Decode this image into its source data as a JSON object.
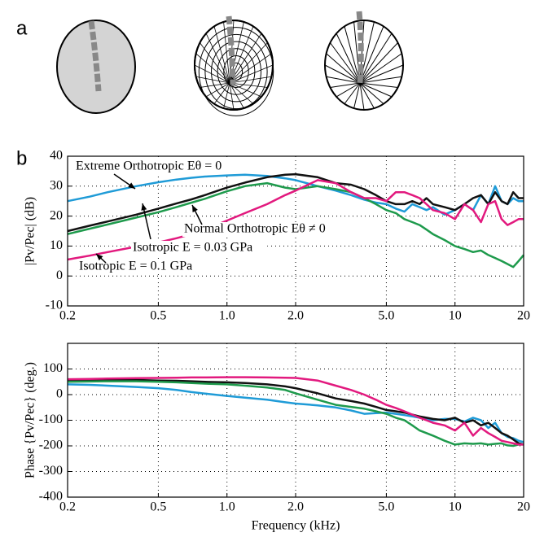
{
  "panels": [
    "a",
    "b"
  ],
  "chart_data": [
    {
      "type": "line",
      "xscale": "log",
      "grid": true,
      "y_label": "|Pv/Pec| (dB)",
      "x": [
        0.2,
        0.25,
        0.3,
        0.4,
        0.5,
        0.6,
        0.7,
        0.8,
        1.0,
        1.2,
        1.5,
        1.8,
        2.0,
        2.5,
        3.0,
        3.5,
        4.0,
        4.5,
        5.0,
        5.5,
        6.0,
        6.5,
        7.0,
        7.5,
        8.0,
        9.0,
        10,
        11,
        12,
        13,
        14,
        15,
        16,
        17,
        18,
        19,
        20
      ],
      "xlim": [
        0.2,
        20
      ],
      "xticks": [
        0.2,
        0.5,
        {
          "value": 1,
          "label": "1.0"
        },
        {
          "value": 2,
          "label": "2.0"
        },
        {
          "value": 5,
          "label": "5.0"
        },
        10,
        20
      ],
      "ylim": [
        -10,
        40
      ],
      "yticks": [
        -10,
        0,
        10,
        20,
        30,
        40
      ],
      "annotations": [
        {
          "text": "Extreme Orthotropic Eθ = 0"
        },
        {
          "text": "Normal Orthotropic Eθ ≠ 0"
        },
        {
          "text": "Isotropic E = 0.03 GPa"
        },
        {
          "text": "Isotropic E = 0.1 GPa"
        }
      ],
      "series": [
        {
          "color": "#1f9bd7",
          "values": [
            25,
            26.5,
            28,
            30,
            31.3,
            32.2,
            32.8,
            33.2,
            33.6,
            33.8,
            33.4,
            32.6,
            32,
            30,
            28.5,
            27,
            25.5,
            24.5,
            24,
            22.5,
            21.5,
            24,
            23,
            22,
            23,
            20.5,
            22,
            24,
            22,
            27,
            24,
            30,
            25,
            24,
            26,
            25,
            25
          ]
        },
        {
          "color": "#111111",
          "values": [
            15,
            16.8,
            18.2,
            20.5,
            22.5,
            24.2,
            25.6,
            27,
            29.5,
            31.2,
            33,
            33.8,
            34,
            33,
            31,
            30.5,
            29,
            27,
            25,
            24,
            24,
            25,
            24,
            26,
            24,
            23,
            22,
            24,
            26,
            27,
            24,
            28,
            25,
            24,
            28,
            26,
            26
          ]
        },
        {
          "color": "#1e9a4c",
          "values": [
            14,
            15.8,
            17.2,
            19.5,
            21.3,
            23,
            24.5,
            25.8,
            28.3,
            30,
            31,
            29.5,
            29,
            30,
            29,
            28,
            26,
            24,
            22,
            21,
            19,
            18,
            17,
            15.5,
            14,
            12,
            10,
            9,
            8,
            8.5,
            7,
            6,
            5,
            4,
            3,
            5,
            7
          ]
        },
        {
          "color": "#e2197e",
          "values": [
            5.5,
            6.8,
            8,
            9.8,
            11.2,
            12.6,
            14,
            15.5,
            18.5,
            21,
            24,
            27,
            28.5,
            32,
            31,
            28,
            26,
            26,
            25,
            28,
            28,
            27,
            26,
            24,
            22,
            21,
            19,
            24,
            22,
            18,
            24,
            25,
            19,
            17,
            18,
            19,
            19
          ]
        }
      ]
    },
    {
      "type": "line",
      "xscale": "log",
      "grid": true,
      "y_label": "Phase {Pv/Pec} (deg.)",
      "x_label": "Frequency (kHz)",
      "x": [
        0.2,
        0.25,
        0.3,
        0.4,
        0.5,
        0.6,
        0.7,
        0.8,
        1.0,
        1.2,
        1.5,
        1.8,
        2.0,
        2.5,
        3.0,
        3.5,
        4.0,
        4.5,
        5.0,
        5.5,
        6.0,
        6.5,
        7.0,
        7.5,
        8.0,
        9.0,
        10,
        11,
        12,
        13,
        14,
        15,
        16,
        17,
        18,
        19,
        20
      ],
      "xlim": [
        0.2,
        20
      ],
      "xticks": [
        0.2,
        0.5,
        {
          "value": 1,
          "label": "1.0"
        },
        {
          "value": 2,
          "label": "2.0"
        },
        {
          "value": 5,
          "label": "5.0"
        },
        10,
        20
      ],
      "ylim": [
        -400,
        200
      ],
      "yticks": [
        -400,
        -300,
        -200,
        -100,
        0,
        100
      ],
      "series": [
        {
          "color": "#1f9bd7",
          "values": [
            40,
            38,
            35,
            30,
            25,
            18,
            10,
            4,
            -5,
            -12,
            -20,
            -30,
            -35,
            -42,
            -50,
            -62,
            -75,
            -72,
            -70,
            -75,
            -80,
            -85,
            -90,
            -95,
            -100,
            -95,
            -95,
            -105,
            -90,
            -100,
            -130,
            -110,
            -150,
            -165,
            -170,
            -180,
            -185
          ]
        },
        {
          "color": "#111111",
          "values": [
            55,
            56,
            57,
            57,
            55,
            54,
            52,
            50,
            48,
            45,
            40,
            32,
            25,
            5,
            -15,
            -25,
            -35,
            -48,
            -60,
            -65,
            -70,
            -78,
            -85,
            -90,
            -95,
            -100,
            -90,
            -110,
            -100,
            -120,
            -110,
            -130,
            -150,
            -160,
            -175,
            -190,
            -195
          ]
        },
        {
          "color": "#1e9a4c",
          "values": [
            50,
            51,
            52,
            52,
            50,
            48,
            45,
            43,
            40,
            35,
            28,
            18,
            5,
            -20,
            -40,
            -48,
            -55,
            -65,
            -75,
            -90,
            -100,
            -120,
            -140,
            -150,
            -160,
            -180,
            -195,
            -190,
            -192,
            -190,
            -195,
            -192,
            -190,
            -198,
            -200,
            -195,
            -195
          ]
        },
        {
          "color": "#e2197e",
          "values": [
            60,
            61,
            63,
            64,
            65,
            66,
            67,
            67,
            68,
            68,
            67,
            66,
            65,
            55,
            35,
            18,
            0,
            -20,
            -40,
            -52,
            -65,
            -78,
            -90,
            -100,
            -110,
            -120,
            -140,
            -110,
            -160,
            -130,
            -150,
            -165,
            -180,
            -185,
            -190,
            -195,
            -195
          ]
        }
      ]
    }
  ]
}
